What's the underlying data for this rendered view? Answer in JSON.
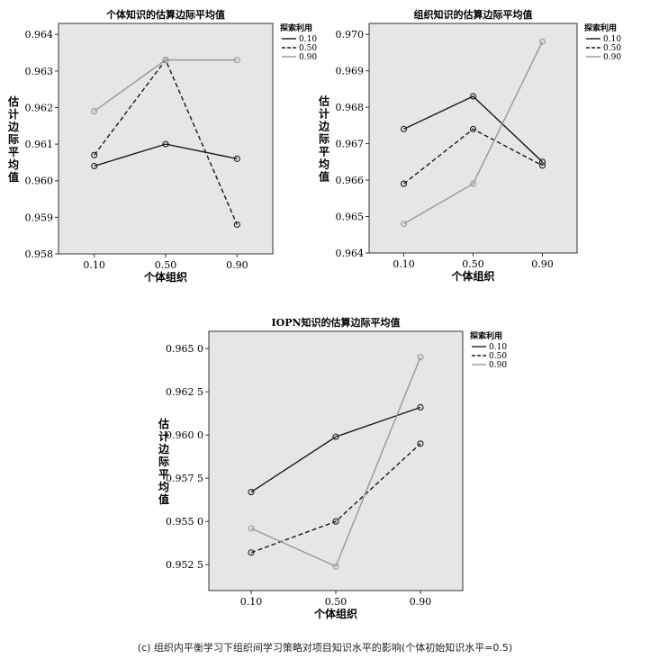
{
  "caption": "(c) 组织内平衡学习下组织间学习策略对项目知识水平的影响(个体初始知识水平=0.5)",
  "colors": {
    "plot_bg": "#e6e6e6",
    "series": [
      "#1a1a1a",
      "#1a1a1a",
      "#999999"
    ],
    "series_dash": [
      "solid",
      "dashed",
      "solid"
    ]
  },
  "chart_data": [
    {
      "type": "line",
      "title": "个体知识的估算边际平均值",
      "xlabel": "个体组织",
      "ylabel": "估计边际平均值",
      "categories": [
        "0.10",
        "0.50",
        "0.90"
      ],
      "ylim": [
        0.958,
        0.9643
      ],
      "yticks": [
        "0.958",
        "0.959",
        "0.960",
        "0.961",
        "0.962",
        "0.963",
        "0.964"
      ],
      "grid": false,
      "legend": {
        "title": "探索利用",
        "placement": "top-right outside",
        "labels": [
          "0.10",
          "0.50",
          "0.90"
        ]
      },
      "series": [
        {
          "name": "0.10",
          "values": [
            0.9604,
            0.961,
            0.9606
          ]
        },
        {
          "name": "0.50",
          "values": [
            0.9607,
            0.9633,
            0.9588
          ]
        },
        {
          "name": "0.90",
          "values": [
            0.9619,
            0.9633,
            0.9633
          ]
        }
      ]
    },
    {
      "type": "line",
      "title": "组织知识的估算边际平均值",
      "xlabel": "个体组织",
      "ylabel": "估计边际平均值",
      "categories": [
        "0.10",
        "0.50",
        "0.90"
      ],
      "ylim": [
        0.964,
        0.9703
      ],
      "yticks": [
        "0.964",
        "0.965",
        "0.966",
        "0.967",
        "0.968",
        "0.969",
        "0.970"
      ],
      "grid": false,
      "legend": {
        "title": "探索利用",
        "placement": "top-right outside",
        "labels": [
          "0.10",
          "0.50",
          "0.90"
        ]
      },
      "series": [
        {
          "name": "0.10",
          "values": [
            0.9674,
            0.9683,
            0.9665
          ]
        },
        {
          "name": "0.50",
          "values": [
            0.9659,
            0.9674,
            0.9664
          ]
        },
        {
          "name": "0.90",
          "values": [
            0.9648,
            0.9659,
            0.9698
          ]
        }
      ]
    },
    {
      "type": "line",
      "title": "IOPN知识的估算边际平均值",
      "xlabel": "个体组织",
      "ylabel": "估计边际平均值",
      "categories": [
        "0.10",
        "0.50",
        "0.90"
      ],
      "ylim": [
        0.951,
        0.966
      ],
      "yticks": [
        "0.9525",
        "0.955",
        "0.9575",
        "0.960",
        "0.9625",
        "0.965"
      ],
      "ytick_labels": [
        "0.952 5",
        "0.955 0",
        "0.957 5",
        "0.960 0",
        "0.962 5",
        "0.965 0"
      ],
      "grid": false,
      "legend": {
        "title": "探索利用",
        "placement": "top-right outside",
        "labels": [
          "0.10",
          "0.50",
          "0.90"
        ]
      },
      "series": [
        {
          "name": "0.10",
          "values": [
            0.9567,
            0.9599,
            0.9616
          ]
        },
        {
          "name": "0.50",
          "values": [
            0.9532,
            0.955,
            0.9595
          ]
        },
        {
          "name": "0.90",
          "values": [
            0.9546,
            0.9524,
            0.9645
          ]
        }
      ]
    }
  ]
}
